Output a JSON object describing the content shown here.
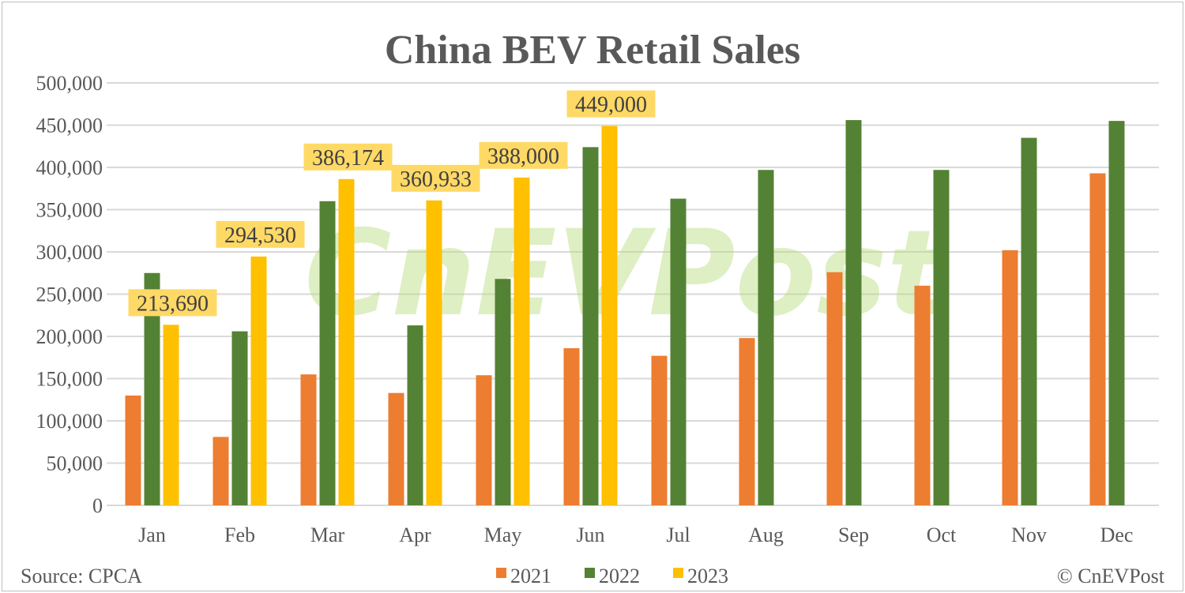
{
  "chart_data": {
    "type": "bar",
    "title": "China BEV Retail Sales",
    "categories": [
      "Jan",
      "Feb",
      "Mar",
      "Apr",
      "May",
      "Jun",
      "Jul",
      "Aug",
      "Sep",
      "Oct",
      "Nov",
      "Dec"
    ],
    "series": [
      {
        "name": "2021",
        "color": "#ed7d31",
        "values": [
          130000,
          81000,
          155000,
          133000,
          154000,
          186000,
          177000,
          198000,
          276000,
          260000,
          302000,
          393000
        ]
      },
      {
        "name": "2022",
        "color": "#548235",
        "values": [
          275000,
          206000,
          360000,
          213000,
          268000,
          424000,
          363000,
          397000,
          456000,
          397000,
          435000,
          455000
        ]
      },
      {
        "name": "2023",
        "color": "#ffc000",
        "values": [
          213690,
          294530,
          386174,
          360933,
          388000,
          449000,
          null,
          null,
          null,
          null,
          null,
          null
        ],
        "data_labels": [
          "213,690",
          "294,530",
          "386,174",
          "360,933",
          "388,000",
          "449,000"
        ]
      }
    ],
    "ylim": [
      0,
      500000
    ],
    "yticks": [
      "0",
      "50,000",
      "100,000",
      "150,000",
      "200,000",
      "250,000",
      "300,000",
      "350,000",
      "400,000",
      "450,000",
      "500,000"
    ],
    "grid": true,
    "legend": "bottom",
    "label_box_color": "#ffd966",
    "grid_color": "#d9d9d9"
  },
  "footer": {
    "source": "Source: CPCA",
    "copyright": "© CnEVPost"
  },
  "watermark": "CnEVPost"
}
